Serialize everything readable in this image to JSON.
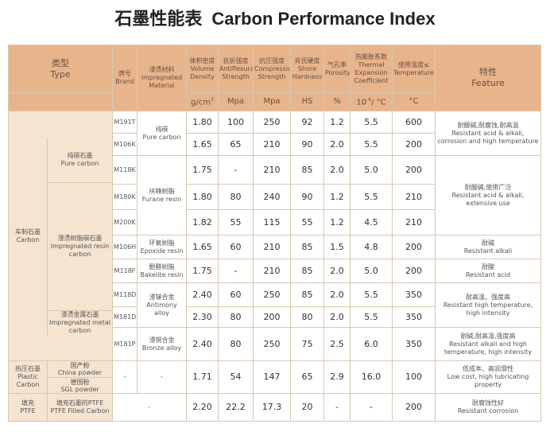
{
  "title": {
    "cn": "石墨性能表",
    "en": "Carbon Performance Index"
  },
  "header": {
    "type": {
      "cn": "类型",
      "en": "Type"
    },
    "brand": {
      "cn": "牌号",
      "en": "Brand"
    },
    "material": {
      "cn": "浸渍材料",
      "en": "Impregnated Material"
    },
    "density": {
      "cn": "体积密度",
      "en": "Volume Density",
      "unit": "g/cm",
      "unit_sup": "3"
    },
    "flexural": {
      "cn": "抗折强度",
      "en": "Antiflexural Strength",
      "unit": "Mpa"
    },
    "compression": {
      "cn": "抗压强度",
      "en": "Compression Strength",
      "unit": "Mpa"
    },
    "hardness": {
      "cn": "肖氏硬度",
      "en": "Shore Hardness",
      "unit": "HS"
    },
    "porosity": {
      "cn": "气孔率",
      "en": "Porosity",
      "unit": "%"
    },
    "expansion": {
      "cn": "热膨胀系数",
      "en": "Thermal Expansion Coefficient",
      "unit_a": "10",
      "unit_sup": "-6",
      "unit_b": "/ °C"
    },
    "temperature": {
      "cn": "使用温度≤",
      "en": "Temperature",
      "unit": "°C"
    },
    "feature": {
      "cn": "特性",
      "en": "Feature"
    }
  },
  "groups": {
    "carbon": {
      "cn": "车制石墨",
      "en": "Carbon"
    },
    "pure": {
      "cn": "纯碳石墨",
      "en": "Pure carbon"
    },
    "resin": {
      "cn": "浸渍树脂碳石墨",
      "en": "Impregnated resin carbon"
    },
    "metal": {
      "cn": "浸渍金属石墨",
      "en": "Impregnated metal carbon"
    },
    "hot": {
      "cn": "热压石墨",
      "en1": "Plastic",
      "en2": "Carbon"
    },
    "ptfe": {
      "cn": "填充",
      "en": "PTFE"
    }
  },
  "materials": {
    "pure": {
      "cn": "纯碳",
      "en": "Pure carbon"
    },
    "furane": {
      "cn": "呋喃树脂",
      "en": "Furane resin"
    },
    "epoxide": {
      "cn": "环氧树脂",
      "en": "Epoxide resin"
    },
    "bakelite": {
      "cn": "酚醛树脂",
      "en": "Bakelite resin"
    },
    "antimony": {
      "cn": "浸锑合金",
      "en1": "Antimony",
      "en2": "alloy"
    },
    "bronze": {
      "cn": "浸铜合金",
      "en": "Bronze alloy"
    },
    "china": {
      "cn": "国产粉",
      "en": "China powder"
    },
    "sgl": {
      "cn": "德国粉",
      "en": "SGL powder"
    },
    "ptfe": {
      "cn": "填充石墨的PTFE",
      "en": "PTFE Filled Carbon"
    }
  },
  "rows": [
    {
      "brand": "M191T",
      "density": "1.80",
      "flexural": "100",
      "compression": "250",
      "hardness": "92",
      "porosity": "1.2",
      "expansion": "5.5",
      "temp": "600"
    },
    {
      "brand": "M106K",
      "density": "1.65",
      "flexural": "65",
      "compression": "210",
      "hardness": "90",
      "porosity": "2.0",
      "expansion": "5.5",
      "temp": "200"
    },
    {
      "brand": "M118K",
      "density": "1.75",
      "flexural": "-",
      "compression": "210",
      "hardness": "85",
      "porosity": "2.0",
      "expansion": "5.0",
      "temp": "200"
    },
    {
      "brand": "M180K",
      "density": "1.80",
      "flexural": "80",
      "compression": "240",
      "hardness": "90",
      "porosity": "1.2",
      "expansion": "5.5",
      "temp": "210"
    },
    {
      "brand": "M200K",
      "density": "1.82",
      "flexural": "55",
      "compression": "115",
      "hardness": "55",
      "porosity": "1.2",
      "expansion": "4.5",
      "temp": "210"
    },
    {
      "brand": "M106H",
      "density": "1.65",
      "flexural": "60",
      "compression": "210",
      "hardness": "85",
      "porosity": "1.5",
      "expansion": "4.8",
      "temp": "200"
    },
    {
      "brand": "M118F",
      "density": "1.75",
      "flexural": "-",
      "compression": "210",
      "hardness": "85",
      "porosity": "2.0",
      "expansion": "5.0",
      "temp": "200"
    },
    {
      "brand": "M118D",
      "density": "2.40",
      "flexural": "60",
      "compression": "250",
      "hardness": "85",
      "porosity": "2.0",
      "expansion": "5.5",
      "temp": "350"
    },
    {
      "brand": "M181D",
      "density": "2.30",
      "flexural": "80",
      "compression": "200",
      "hardness": "80",
      "porosity": "2.0",
      "expansion": "5.5",
      "temp": "350"
    },
    {
      "brand": "M181P",
      "density": "2.40",
      "flexural": "80",
      "compression": "250",
      "hardness": "75",
      "porosity": "2.5",
      "expansion": "6.0",
      "temp": "350"
    },
    {
      "brand": "-",
      "material": "-",
      "density": "1.71",
      "flexural": "54",
      "compression": "147",
      "hardness": "65",
      "porosity": "2.9",
      "expansion": "16.0",
      "temp": "100"
    },
    {
      "brand": "-",
      "density": "2.20",
      "flexural": "22.2",
      "compression": "17.3",
      "hardness": "20",
      "porosity": "-",
      "expansion": "-",
      "temp": "200"
    }
  ],
  "features": {
    "pure": {
      "cn": "耐酸碱,耐腐蚀,耐高温",
      "en": "Resistant acid & alkali, corrosion and high temperature"
    },
    "furane": {
      "cn": "耐酸碱,使用广泛",
      "en": "Resistant acid & alkali, extensive use"
    },
    "epoxide": {
      "cn": "耐碱",
      "en": "Resistant alkali"
    },
    "bakelite": {
      "cn": "耐酸",
      "en": "Resistant acid"
    },
    "antimony": {
      "cn": "耐高温、强度高",
      "en": "Resistant high temperature, high intensity"
    },
    "bronze": {
      "cn": "耐碱,耐高温,强度高",
      "en": "Resistant alkali and high temperature, high intensity"
    },
    "hot": {
      "cn": "低成本、高润滑性",
      "en": "Low cost, high lubricating property"
    },
    "ptfe": {
      "cn": "耐腐蚀性好",
      "en": "Resistant corrosion"
    }
  }
}
